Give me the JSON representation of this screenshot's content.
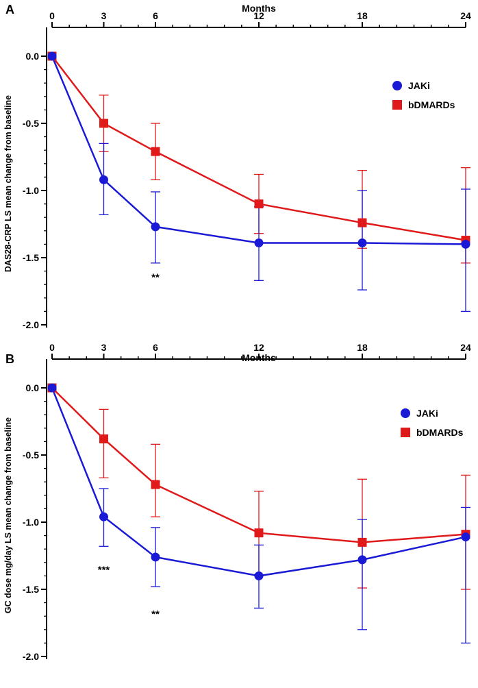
{
  "chart_data": [
    {
      "type": "line",
      "panel_label": "A",
      "xlabel": "Months",
      "ylabel": "DAS28-CRP LS mean change from baseline",
      "x": [
        0,
        3,
        6,
        12,
        18,
        24
      ],
      "x_tick_labels": [
        "0",
        "3",
        "6",
        "12",
        "18",
        "24"
      ],
      "xlim": [
        0,
        24
      ],
      "ylim": [
        -2.0,
        0.0
      ],
      "y_ticks": [
        0.0,
        -0.5,
        -1.0,
        -1.5,
        -2.0
      ],
      "y_tick_labels": [
        "0.0",
        "-0.5",
        "-1.0",
        "-1.5",
        "-2.0"
      ],
      "x_axis_position": "top",
      "legend_position": "top-right",
      "series": [
        {
          "name": "JAKi",
          "color": "#1a1ad6",
          "marker": "circle",
          "values": [
            0.0,
            -0.92,
            -1.27,
            -1.39,
            -1.39,
            -1.4
          ],
          "err_low": [
            0.0,
            -1.18,
            -1.54,
            -1.67,
            -1.74,
            -1.9
          ],
          "err_high": [
            0.0,
            -0.65,
            -1.01,
            -1.12,
            -1.0,
            -0.99
          ]
        },
        {
          "name": "bDMARDs",
          "color": "#e01a1a",
          "marker": "square",
          "values": [
            0.0,
            -0.5,
            -0.71,
            -1.1,
            -1.24,
            -1.37
          ],
          "err_low": [
            0.0,
            -0.71,
            -0.92,
            -1.32,
            -1.43,
            -1.54
          ],
          "err_high": [
            0.0,
            -0.29,
            -0.5,
            -0.88,
            -0.85,
            -0.83
          ]
        }
      ],
      "annotations": [
        {
          "text": "**",
          "x": 6,
          "y": -1.67
        }
      ]
    },
    {
      "type": "line",
      "panel_label": "B",
      "xlabel": "Months",
      "ylabel": "GC dose mg/day LS mean change from baseline",
      "x": [
        0,
        3,
        6,
        12,
        18,
        24
      ],
      "x_tick_labels": [
        "0",
        "3",
        "6",
        "12",
        "18",
        "24"
      ],
      "xlim": [
        0,
        24
      ],
      "ylim": [
        -2.0,
        0.0
      ],
      "y_ticks": [
        0.0,
        -0.5,
        -1.0,
        -1.5,
        -2.0
      ],
      "y_tick_labels": [
        "0.0",
        "-0.5",
        "-1.0",
        "-1.5",
        "-2.0"
      ],
      "x_axis_position": "top",
      "legend_position": "top-right",
      "series": [
        {
          "name": "JAKi",
          "color": "#1a1ad6",
          "marker": "circle",
          "values": [
            0.0,
            -0.96,
            -1.26,
            -1.4,
            -1.28,
            -1.11
          ],
          "err_low": [
            0.0,
            -1.18,
            -1.48,
            -1.64,
            -1.8,
            -1.9
          ],
          "err_high": [
            0.0,
            -0.75,
            -1.04,
            -1.17,
            -0.98,
            -0.89
          ]
        },
        {
          "name": "bDMARDs",
          "color": "#e01a1a",
          "marker": "square",
          "values": [
            0.0,
            -0.38,
            -0.72,
            -1.08,
            -1.15,
            -1.09
          ],
          "err_low": [
            0.0,
            -0.67,
            -0.96,
            -1.4,
            -1.49,
            -1.5
          ],
          "err_high": [
            0.0,
            -0.16,
            -0.42,
            -0.77,
            -0.68,
            -0.65
          ]
        }
      ],
      "annotations": [
        {
          "text": "***",
          "x": 3,
          "y": -1.38
        },
        {
          "text": "**",
          "x": 6,
          "y": -1.71
        }
      ]
    }
  ]
}
